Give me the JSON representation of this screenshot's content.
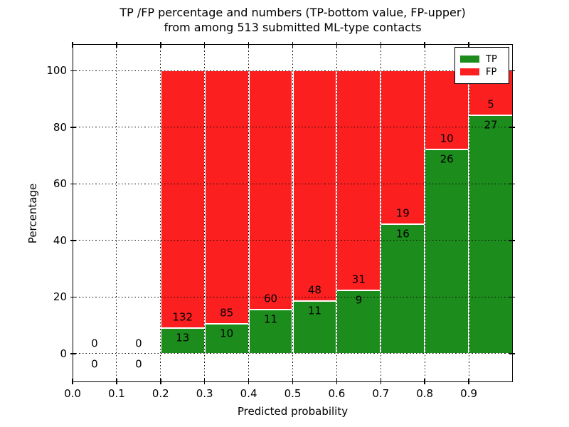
{
  "chart_data": {
    "type": "bar",
    "stacked": true,
    "title_line1": "TP /FP percentage and numbers (TP-bottom value, FP-upper)",
    "title_line2": "from among 513 submitted ML-type contacts",
    "xlabel": "Predicted probability",
    "ylabel": "Percentage",
    "x_tick_labels": [
      "0.0",
      "0.1",
      "0.2",
      "0.3",
      "0.4",
      "0.5",
      "0.6",
      "0.7",
      "0.8",
      "0.9"
    ],
    "x_tick_values": [
      0.0,
      0.1,
      0.2,
      0.3,
      0.4,
      0.5,
      0.6,
      0.7,
      0.8,
      0.9
    ],
    "y_tick_values": [
      0,
      20,
      40,
      60,
      80,
      100
    ],
    "xlim": [
      0.0,
      1.0
    ],
    "ylim": [
      -10.06,
      109.4
    ],
    "bin_width": 0.1,
    "grid": true,
    "legend_position": "upper right",
    "legend": [
      {
        "label": "TP",
        "color": "#1c8c1c"
      },
      {
        "label": "FP",
        "color": "#fc1f1f"
      }
    ],
    "colors": {
      "tp": "#1c8c1c",
      "fp": "#fc1f1f"
    },
    "total_contacts": 513,
    "bins": [
      {
        "start": 0.0,
        "end": 0.1,
        "tp": 0,
        "fp": 0
      },
      {
        "start": 0.1,
        "end": 0.2,
        "tp": 0,
        "fp": 0
      },
      {
        "start": 0.2,
        "end": 0.3,
        "tp": 13,
        "fp": 132
      },
      {
        "start": 0.3,
        "end": 0.4,
        "tp": 10,
        "fp": 85
      },
      {
        "start": 0.4,
        "end": 0.5,
        "tp": 11,
        "fp": 60
      },
      {
        "start": 0.5,
        "end": 0.6,
        "tp": 11,
        "fp": 48
      },
      {
        "start": 0.6,
        "end": 0.7,
        "tp": 9,
        "fp": 31
      },
      {
        "start": 0.7,
        "end": 0.8,
        "tp": 16,
        "fp": 19
      },
      {
        "start": 0.8,
        "end": 0.9,
        "tp": 26,
        "fp": 10
      },
      {
        "start": 0.9,
        "end": 1.0,
        "tp": 27,
        "fp": 5
      }
    ]
  }
}
